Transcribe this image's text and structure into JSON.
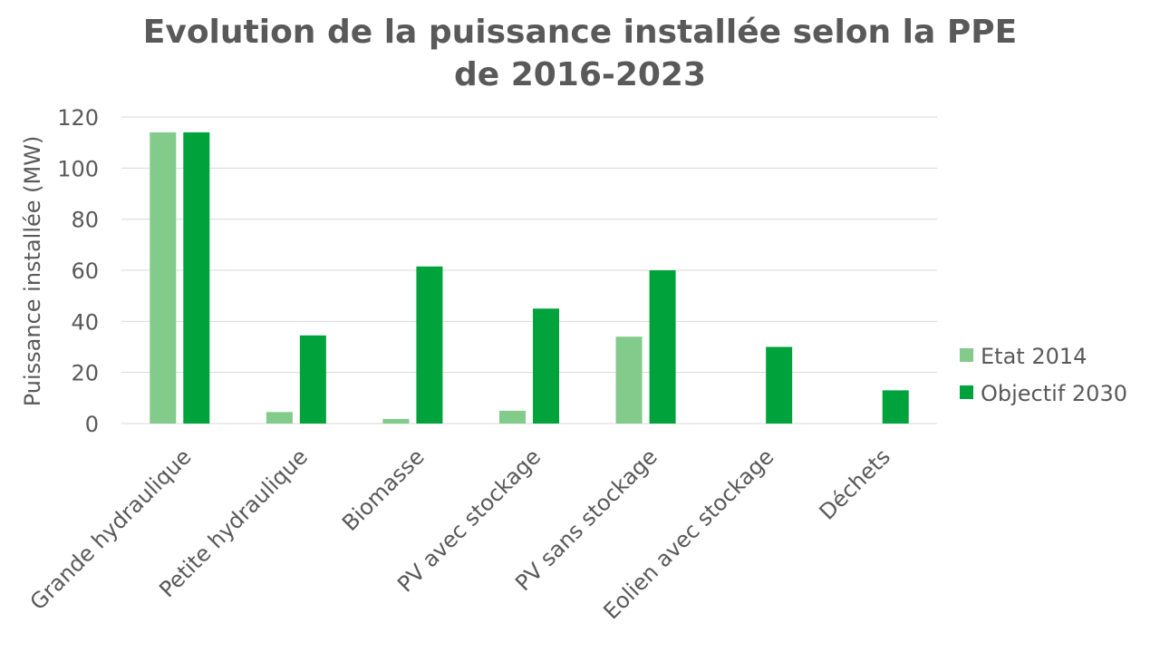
{
  "chart_data": {
    "type": "bar",
    "title_lines": [
      "Evolution de la puissance installée selon la PPE",
      "de 2016-2023"
    ],
    "ylabel": "Puissance installée (MW)",
    "xlabel": "",
    "ylim": [
      0,
      120
    ],
    "yticks": [
      "0",
      "20",
      "40",
      "60",
      "80",
      "100",
      "120"
    ],
    "ytick_values": [
      0,
      20,
      40,
      60,
      80,
      100,
      120
    ],
    "grid": true,
    "legend_position": "right",
    "categories": [
      "Grande hydraulique",
      "Petite hydraulique",
      "Biomasse",
      "PV avec stockage",
      "PV sans stockage",
      "Eolien avec stockage",
      "Déchets"
    ],
    "series": [
      {
        "name": "Etat  2014",
        "color": "#82cb8a",
        "values": [
          114,
          4.5,
          1.8,
          5,
          34,
          0,
          0
        ]
      },
      {
        "name": "Objectif 2030",
        "color": "#00a33b",
        "values": [
          114,
          34.5,
          61.5,
          45,
          60,
          30,
          13
        ]
      }
    ]
  }
}
